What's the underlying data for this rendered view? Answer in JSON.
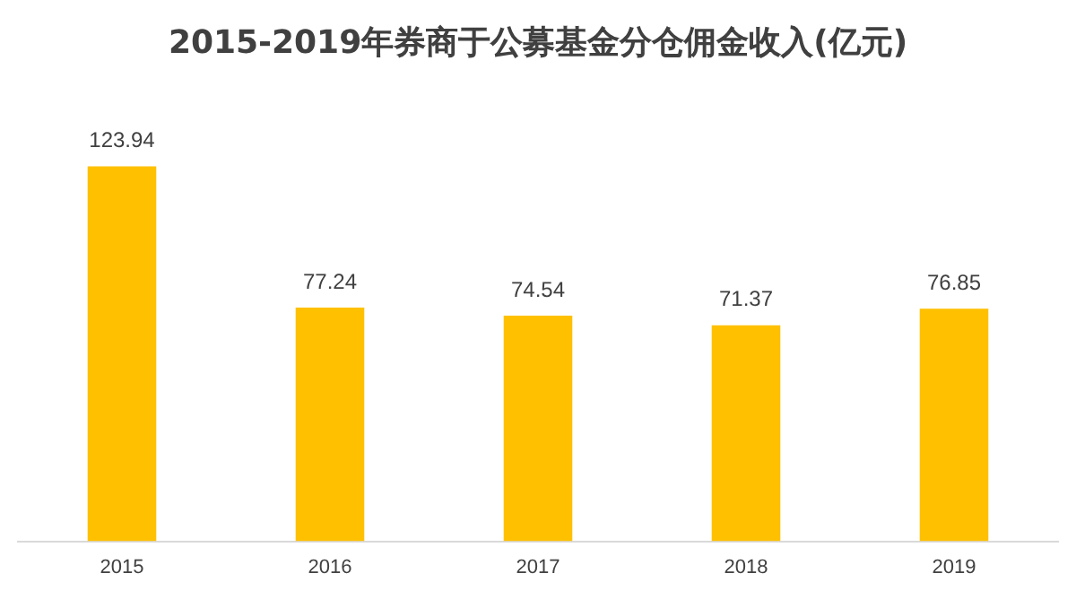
{
  "chart_data": {
    "type": "bar",
    "title": "2015-2019年券商于公募基金分仓佣金收入(亿元)",
    "categories": [
      "2015",
      "2016",
      "2017",
      "2018",
      "2019"
    ],
    "values": [
      123.94,
      77.24,
      74.54,
      71.37,
      76.85
    ],
    "color": "#ffc000",
    "data_labels": true,
    "grid": false,
    "legend": false
  }
}
